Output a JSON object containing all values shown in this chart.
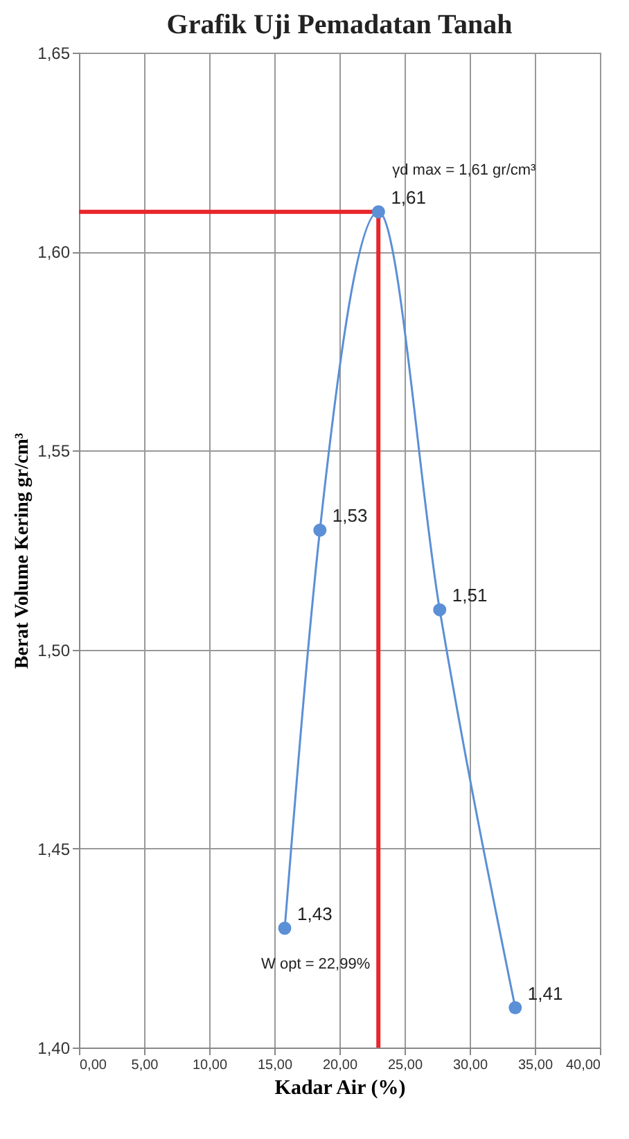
{
  "chart_data": {
    "type": "line",
    "title": "Grafik Uji Pemadatan Tanah",
    "xlabel": "Kadar Air (%)",
    "ylabel": "Berat Volume Kering gr/cm³",
    "x": [
      15.8,
      18.5,
      23.0,
      27.7,
      33.5
    ],
    "series": [
      {
        "color": "#5b8fd6",
        "values": [
          1.43,
          1.53,
          1.61,
          1.51,
          1.41
        ],
        "value_labels": [
          "1,43",
          "1,53",
          "1,61",
          "1,51",
          "1,41"
        ]
      }
    ],
    "marker": "circle",
    "line_style": "solid",
    "grid": true,
    "xlim": [
      0,
      40
    ],
    "xticks": [
      {
        "value": 0,
        "label": "0,00"
      },
      {
        "value": 5,
        "label": "5,00"
      },
      {
        "value": 10,
        "label": "10,00"
      },
      {
        "value": 15,
        "label": "15,00"
      },
      {
        "value": 20,
        "label": "20,00"
      },
      {
        "value": 25,
        "label": "25,00"
      },
      {
        "value": 30,
        "label": "30,00"
      },
      {
        "value": 35,
        "label": "35,00"
      },
      {
        "value": 40,
        "label": "40,00"
      }
    ],
    "ylim": [
      1.4,
      1.65
    ],
    "yticks": [
      {
        "value": 1.4,
        "label": "1,40"
      },
      {
        "value": 1.45,
        "label": "1,45"
      },
      {
        "value": 1.5,
        "label": "1,50"
      },
      {
        "value": 1.55,
        "label": "1,55"
      },
      {
        "value": 1.6,
        "label": "1,60"
      },
      {
        "value": 1.65,
        "label": "1,65"
      }
    ],
    "ref_lines": [
      {
        "axis": "x",
        "value": 22.99,
        "label": "W opt = 22,99%",
        "color": "#e8262b"
      },
      {
        "axis": "y",
        "value": 1.61,
        "label": "γd max = 1,61 gr/cm³",
        "color": "#e8262b"
      }
    ]
  }
}
